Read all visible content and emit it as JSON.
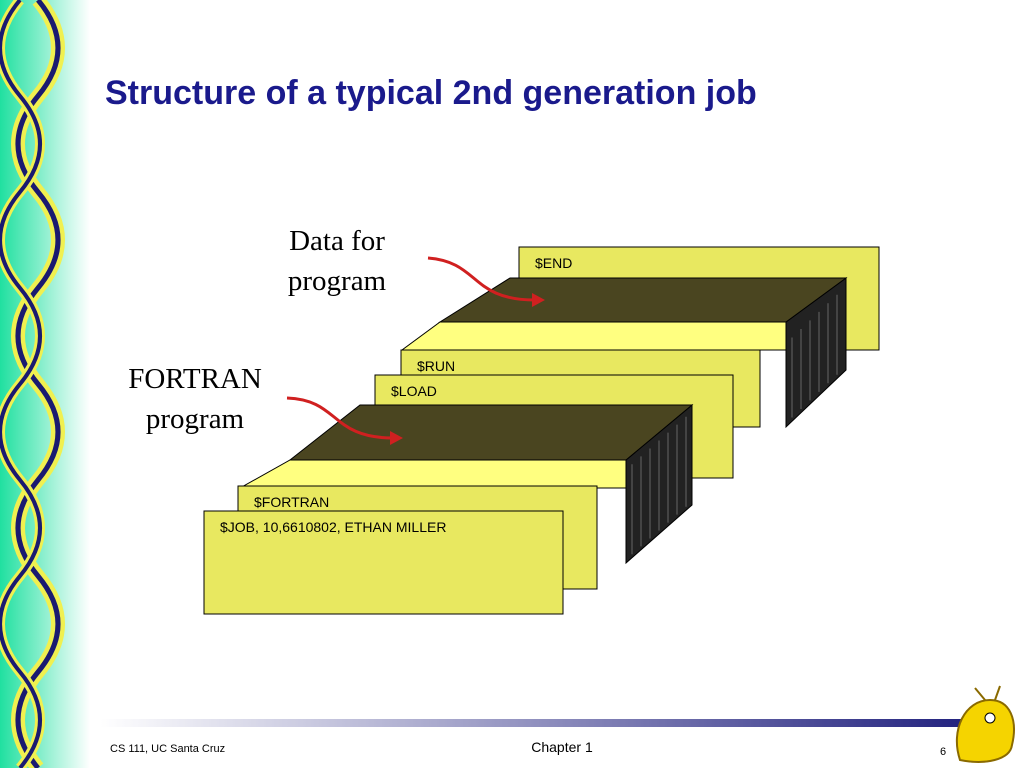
{
  "title": "Structure of a typical 2nd generation job",
  "callouts": [
    {
      "lines": [
        "Data for",
        "program"
      ]
    },
    {
      "lines": [
        "FORTRAN",
        "program"
      ]
    }
  ],
  "cards": [
    "$END",
    "$RUN",
    "$LOAD",
    "$FORTRAN",
    "$JOB, 10,6610802, ETHAN MILLER"
  ],
  "footer": {
    "left": "CS 111, UC Santa Cruz",
    "center": "Chapter 1",
    "page": "6"
  }
}
